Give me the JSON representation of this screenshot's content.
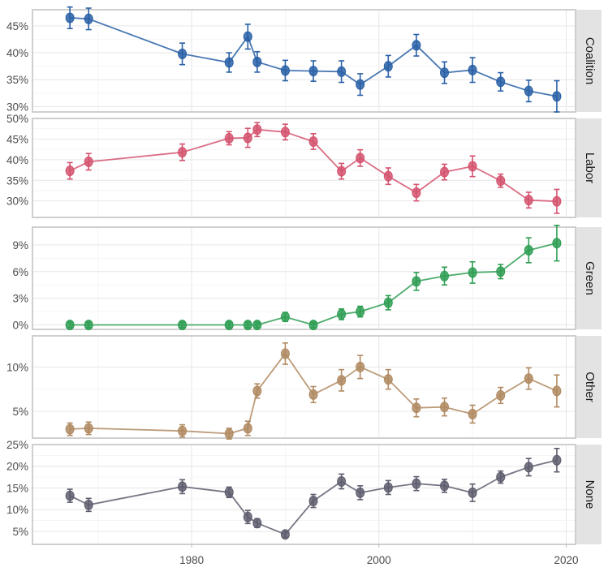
{
  "chart_data": {
    "type": "line",
    "title": "",
    "xlabel": "",
    "ylabel": "",
    "xlim": [
      1963,
      2021
    ],
    "x_ticks": [
      {
        "value": 1980,
        "label": "1980"
      },
      {
        "value": 2000,
        "label": "2000"
      },
      {
        "value": 2020,
        "label": "2020"
      }
    ],
    "grid": true,
    "error_bars": true,
    "x": [
      1967,
      1969,
      1979,
      1984,
      1986,
      1987,
      1990,
      1993,
      1996,
      1998,
      2001,
      2004,
      2007,
      2010,
      2013,
      2016,
      2019
    ],
    "panels": [
      {
        "strip_label": "Coalition",
        "color": "#2960a6",
        "ylim": [
          29,
          48
        ],
        "y_ticks": [
          {
            "value": 30,
            "label": "30%"
          },
          {
            "value": 35,
            "label": "35%"
          },
          {
            "value": 40,
            "label": "40%"
          },
          {
            "value": 45,
            "label": "45%"
          }
        ],
        "values": [
          46.5,
          46.3,
          39.8,
          38.2,
          43.0,
          38.3,
          36.7,
          36.6,
          36.5,
          34.1,
          37.5,
          41.4,
          36.3,
          36.8,
          34.6,
          32.9,
          31.9
        ],
        "errors": [
          2.0,
          2.0,
          2.0,
          1.8,
          2.3,
          1.9,
          1.9,
          1.9,
          2.0,
          2.0,
          2.0,
          2.0,
          2.0,
          2.3,
          1.7,
          2.0,
          2.9
        ]
      },
      {
        "strip_label": "Labor",
        "color": "#d4536f",
        "ylim": [
          26,
          50
        ],
        "y_ticks": [
          {
            "value": 30,
            "label": "30%"
          },
          {
            "value": 35,
            "label": "35%"
          },
          {
            "value": 40,
            "label": "40%"
          },
          {
            "value": 45,
            "label": "45%"
          },
          {
            "value": 50,
            "label": "50%"
          }
        ],
        "values": [
          37.3,
          39.5,
          41.8,
          45.2,
          45.3,
          47.3,
          46.7,
          44.4,
          37.2,
          40.4,
          36.0,
          32.0,
          37.0,
          38.4,
          34.9,
          30.2,
          29.9
        ],
        "errors": [
          2.0,
          2.0,
          2.0,
          1.6,
          2.3,
          1.7,
          1.9,
          1.9,
          1.9,
          2.0,
          2.0,
          2.0,
          1.9,
          2.5,
          1.6,
          1.9,
          2.9
        ]
      },
      {
        "strip_label": "Green",
        "color": "#2e9e53",
        "ylim": [
          -0.5,
          11
        ],
        "y_ticks": [
          {
            "value": 0,
            "label": "0%"
          },
          {
            "value": 3,
            "label": "3%"
          },
          {
            "value": 6,
            "label": "6%"
          },
          {
            "value": 9,
            "label": "9%"
          }
        ],
        "values": [
          0.0,
          0.0,
          0.0,
          0.0,
          0.0,
          0.0,
          0.9,
          0.0,
          1.2,
          1.5,
          2.5,
          4.9,
          5.5,
          5.9,
          6.0,
          8.4,
          9.2
        ],
        "errors": [
          0.3,
          0.3,
          0.3,
          0.3,
          0.3,
          0.3,
          0.5,
          0.3,
          0.6,
          0.6,
          0.8,
          1.0,
          1.0,
          1.2,
          0.8,
          1.4,
          2.0
        ]
      },
      {
        "strip_label": "Other",
        "color": "#b08a62",
        "ylim": [
          2,
          13.5
        ],
        "y_ticks": [
          {
            "value": 5,
            "label": "5%"
          },
          {
            "value": 10,
            "label": "10%"
          }
        ],
        "values": [
          3.0,
          3.1,
          2.8,
          2.5,
          3.1,
          7.3,
          11.5,
          6.9,
          8.5,
          10.0,
          8.6,
          5.4,
          5.5,
          4.7,
          6.8,
          8.7,
          7.3
        ],
        "errors": [
          0.7,
          0.7,
          0.7,
          0.6,
          0.8,
          0.8,
          1.2,
          0.9,
          1.2,
          1.3,
          1.1,
          1.0,
          1.0,
          1.0,
          0.9,
          1.2,
          1.8
        ]
      },
      {
        "strip_label": "None",
        "color": "#5d5d6e",
        "ylim": [
          2,
          25
        ],
        "y_ticks": [
          {
            "value": 5,
            "label": "5%"
          },
          {
            "value": 10,
            "label": "10%"
          },
          {
            "value": 15,
            "label": "15%"
          },
          {
            "value": 20,
            "label": "20%"
          },
          {
            "value": 25,
            "label": "25%"
          }
        ],
        "values": [
          13.2,
          11.1,
          15.3,
          14.0,
          8.3,
          6.9,
          4.3,
          12.0,
          16.5,
          13.9,
          15.1,
          16.0,
          15.5,
          13.9,
          17.5,
          19.8,
          21.4
        ],
        "errors": [
          1.5,
          1.5,
          1.6,
          1.2,
          1.5,
          1.0,
          0.7,
          1.5,
          1.7,
          1.6,
          1.6,
          1.6,
          1.5,
          2.0,
          1.4,
          2.0,
          2.7
        ]
      }
    ]
  }
}
